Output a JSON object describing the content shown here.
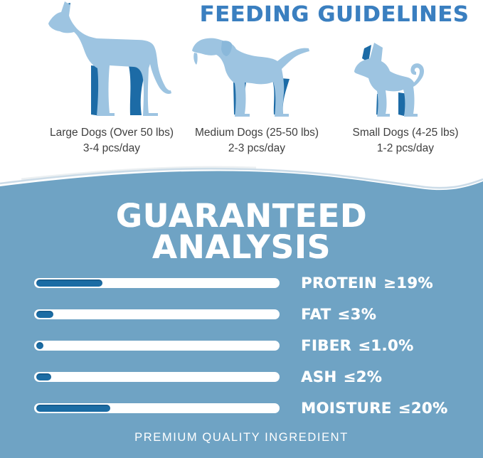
{
  "feeding": {
    "title": "FEEDING GUIDELINES",
    "groups": [
      {
        "icon": "great-dane-dog-icon",
        "label": "Large Dogs (Over 50 lbs)",
        "amount": "3-4 pcs/day"
      },
      {
        "icon": "labrador-dog-icon",
        "label": "Medium Dogs (25-50 lbs)",
        "amount": "2-3 pcs/day"
      },
      {
        "icon": "chihuahua-dog-icon",
        "label": "Small Dogs (4-25 lbs)",
        "amount": "1-2 pcs/day"
      }
    ]
  },
  "analysis": {
    "title_line1": "GUARANTEED",
    "title_line2": "ANALYSIS",
    "nutrients": [
      {
        "name": "PROTEIN",
        "value": "≥19%",
        "fill_pct": 27
      },
      {
        "name": "FAT",
        "value": "≤3%",
        "fill_pct": 7
      },
      {
        "name": "FIBER",
        "value": "≤1.0%",
        "fill_pct": 3
      },
      {
        "name": "ASH",
        "value": "≤2%",
        "fill_pct": 6
      },
      {
        "name": "MOISTURE",
        "value": "≤20%",
        "fill_pct": 30
      }
    ],
    "footer": "PREMIUM QUALITY INGREDIENT"
  },
  "colors": {
    "title_blue": "#3A7FC0",
    "dog_body_light": "#9DC4E1",
    "dog_accent_dark": "#1C6BA6",
    "section_background_blue": "#6FA3C4",
    "bar_track_white": "#FFFFFF",
    "bar_fill_blue": "#1B6CA4",
    "caption_text": "#3F3F3F",
    "analysis_text_white": "#FFFFFF"
  },
  "chart_data": {
    "type": "bar",
    "orientation": "horizontal",
    "title": "GUARANTEED ANALYSIS",
    "categories": [
      "PROTEIN",
      "FAT",
      "FIBER",
      "ASH",
      "MOISTURE"
    ],
    "values": [
      19,
      3,
      1.0,
      2,
      20
    ],
    "value_qualifiers": [
      "≥",
      "≤",
      "≤",
      "≤",
      "≤"
    ],
    "value_labels": [
      "≥19%",
      "≤3%",
      "≤1.0%",
      "≤2%",
      "≤20%"
    ],
    "unit": "%",
    "bar_fill_fraction_of_track": [
      0.27,
      0.07,
      0.03,
      0.06,
      0.3
    ],
    "legend": "none",
    "grid": false,
    "annotation": "PREMIUM QUALITY INGREDIENT"
  }
}
